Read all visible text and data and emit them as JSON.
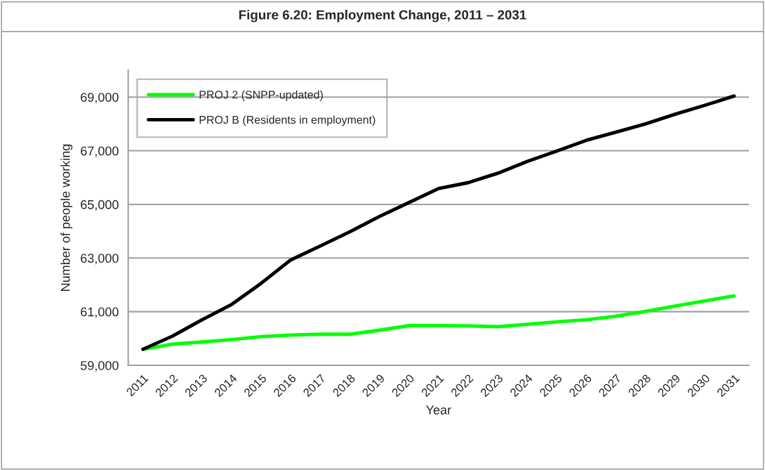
{
  "chart_data": {
    "type": "line",
    "title": "Figure 6.20: Employment Change, 2011 – 2031",
    "xlabel": "Year",
    "ylabel": "Number of people working",
    "categories": [
      "2011",
      "2012",
      "2013",
      "2014",
      "2015",
      "2016",
      "2017",
      "2018",
      "2019",
      "2020",
      "2021",
      "2022",
      "2023",
      "2024",
      "2025",
      "2026",
      "2027",
      "2028",
      "2029",
      "2030",
      "2031"
    ],
    "series": [
      {
        "name": "PROJ 2 (SNPP-updated)",
        "color": "#00ff00",
        "values": [
          59600,
          59790,
          59870,
          59960,
          60070,
          60130,
          60160,
          60160,
          60310,
          60480,
          60480,
          60470,
          60440,
          60530,
          60620,
          60700,
          60830,
          61010,
          61210,
          61400,
          61590
        ]
      },
      {
        "name": "PROJ B (Residents in employment)",
        "color": "#000000",
        "values": [
          59600,
          60090,
          60700,
          61270,
          62060,
          62930,
          63450,
          63980,
          64550,
          65070,
          65590,
          65810,
          66160,
          66600,
          66990,
          67390,
          67690,
          68000,
          68360,
          68690,
          69040
        ]
      }
    ],
    "ylim": [
      59000,
      70000
    ],
    "yticks": [
      {
        "value": 59000,
        "label": "59,000"
      },
      {
        "value": 61000,
        "label": "61,000"
      },
      {
        "value": 63000,
        "label": "63,000"
      },
      {
        "value": 65000,
        "label": "65,000"
      },
      {
        "value": 67000,
        "label": "67,000"
      },
      {
        "value": 69000,
        "label": "69,000"
      }
    ],
    "grid": "y",
    "legend": "top left",
    "marker": "none",
    "line_style": "solid"
  }
}
